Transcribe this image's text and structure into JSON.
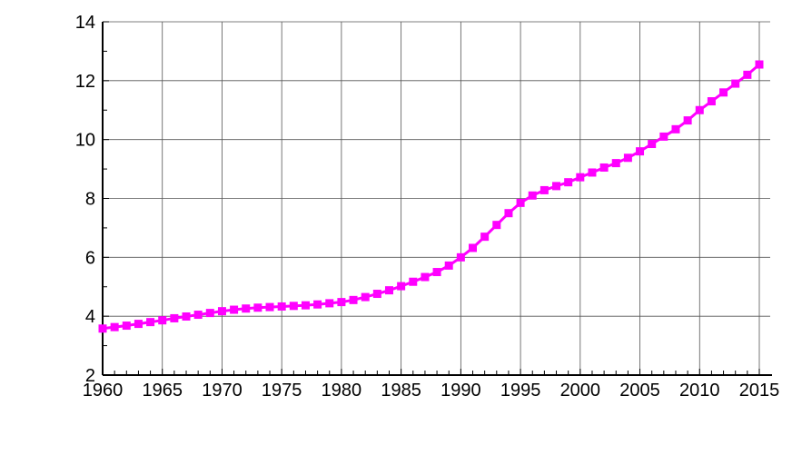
{
  "chart_data": {
    "type": "line",
    "title": "",
    "xlabel": "",
    "ylabel": "",
    "xlim": [
      1960,
      2015
    ],
    "ylim": [
      2,
      14
    ],
    "grid": true,
    "x_ticks": [
      1960,
      1965,
      1970,
      1975,
      1980,
      1985,
      1990,
      1995,
      2000,
      2005,
      2010,
      2015
    ],
    "y_ticks": [
      2,
      4,
      6,
      8,
      10,
      12,
      14
    ],
    "x_tick_labels": [
      "1960",
      "1965",
      "1970",
      "1975",
      "1980",
      "1985",
      "1990",
      "1995",
      "2000",
      "2005",
      "2010",
      "2015"
    ],
    "y_tick_labels": [
      "2",
      "4",
      "6",
      "8",
      "10",
      "12",
      "14"
    ],
    "line_color": "#ff00ff",
    "marker": "square",
    "series": [
      {
        "x": [
          1960,
          1961,
          1962,
          1963,
          1964,
          1965,
          1966,
          1967,
          1968,
          1969,
          1970,
          1971,
          1972,
          1973,
          1974,
          1975,
          1976,
          1977,
          1978,
          1979,
          1980,
          1981,
          1982,
          1983,
          1984,
          1985,
          1986,
          1987,
          1988,
          1989,
          1990,
          1991,
          1992,
          1993,
          1994,
          1995,
          1996,
          1997,
          1998,
          1999,
          2000,
          2001,
          2002,
          2003,
          2004,
          2005,
          2006,
          2007,
          2008,
          2009,
          2010,
          2011,
          2012,
          2013,
          2014,
          2015
        ],
        "y": [
          3.58,
          3.63,
          3.68,
          3.74,
          3.8,
          3.86,
          3.93,
          3.99,
          4.05,
          4.11,
          4.17,
          4.22,
          4.26,
          4.29,
          4.31,
          4.33,
          4.35,
          4.37,
          4.4,
          4.44,
          4.48,
          4.55,
          4.65,
          4.76,
          4.88,
          5.02,
          5.17,
          5.33,
          5.5,
          5.72,
          6.0,
          6.32,
          6.7,
          7.1,
          7.5,
          7.85,
          8.1,
          8.28,
          8.42,
          8.55,
          8.72,
          8.88,
          9.05,
          9.2,
          9.38,
          9.6,
          9.85,
          10.1,
          10.35,
          10.65,
          11.0,
          11.3,
          11.6,
          11.9,
          12.2,
          12.55
        ]
      }
    ]
  }
}
